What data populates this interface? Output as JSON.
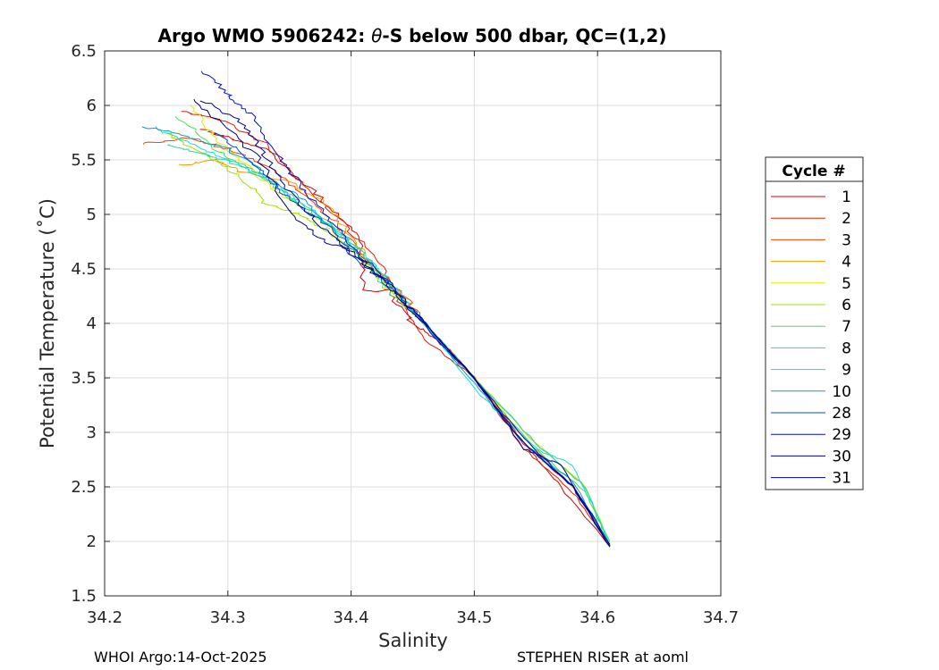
{
  "chart_data": {
    "type": "line",
    "title_parts": [
      "Argo WMO 5906242: ",
      "θ",
      "-S below 500 dbar,  QC=(1,2)"
    ],
    "xlabel": "Salinity",
    "ylabel": "Potential Temperature (˚C)",
    "xlim": [
      34.2,
      34.7
    ],
    "ylim": [
      1.5,
      6.5
    ],
    "xticks": [
      34.2,
      34.3,
      34.4,
      34.5,
      34.6,
      34.7
    ],
    "xtick_labels": [
      "34.2",
      "34.3",
      "34.4",
      "34.5",
      "34.6",
      "34.7"
    ],
    "yticks": [
      1.5,
      2,
      2.5,
      3,
      3.5,
      4,
      4.5,
      5,
      5.5,
      6,
      6.5
    ],
    "ytick_labels": [
      "1.5",
      "2",
      "2.5",
      "3",
      "3.5",
      "4",
      "4.5",
      "5",
      "5.5",
      "6",
      "6.5"
    ],
    "grid": true,
    "legend_title": "Cycle #",
    "legend_position": "outside-right",
    "series": [
      {
        "name": "1",
        "color": "#d40000",
        "points": [
          [
            34.28,
            5.78
          ],
          [
            34.3,
            5.7
          ],
          [
            34.33,
            5.6
          ],
          [
            34.36,
            5.3
          ],
          [
            34.39,
            5.0
          ],
          [
            34.41,
            4.7
          ],
          [
            34.41,
            4.3
          ],
          [
            34.43,
            4.3
          ],
          [
            34.45,
            4.0
          ],
          [
            34.47,
            3.85
          ],
          [
            34.5,
            3.5
          ],
          [
            34.54,
            2.9
          ],
          [
            34.57,
            2.5
          ],
          [
            34.61,
            1.95
          ]
        ]
      },
      {
        "name": "2",
        "color": "#e01e00",
        "points": [
          [
            34.26,
            5.95
          ],
          [
            34.3,
            5.85
          ],
          [
            34.33,
            5.65
          ],
          [
            34.36,
            5.3
          ],
          [
            34.39,
            4.95
          ],
          [
            34.42,
            4.6
          ],
          [
            34.44,
            4.2
          ],
          [
            34.46,
            3.85
          ],
          [
            34.5,
            3.5
          ],
          [
            34.54,
            2.85
          ],
          [
            34.58,
            2.45
          ],
          [
            34.61,
            1.96
          ]
        ]
      },
      {
        "name": "3",
        "color": "#ee4400",
        "points": [
          [
            34.23,
            5.65
          ],
          [
            34.27,
            5.7
          ],
          [
            34.3,
            5.6
          ],
          [
            34.33,
            5.45
          ],
          [
            34.36,
            5.2
          ],
          [
            34.39,
            4.9
          ],
          [
            34.41,
            4.6
          ],
          [
            34.44,
            4.3
          ],
          [
            34.46,
            4.0
          ],
          [
            34.5,
            3.5
          ],
          [
            34.54,
            2.9
          ],
          [
            34.58,
            2.5
          ],
          [
            34.61,
            1.97
          ]
        ]
      },
      {
        "name": "4",
        "color": "#f49a00",
        "points": [
          [
            34.26,
            5.45
          ],
          [
            34.29,
            5.5
          ],
          [
            34.31,
            5.4
          ],
          [
            34.35,
            5.3
          ],
          [
            34.38,
            5.1
          ],
          [
            34.4,
            4.8
          ],
          [
            34.42,
            4.5
          ],
          [
            34.44,
            4.25
          ],
          [
            34.46,
            4.0
          ],
          [
            34.5,
            3.5
          ],
          [
            34.54,
            2.95
          ],
          [
            34.58,
            2.5
          ],
          [
            34.61,
            1.98
          ]
        ]
      },
      {
        "name": "5",
        "color": "#e8e800",
        "points": [
          [
            34.27,
            6.0
          ],
          [
            34.29,
            5.7
          ],
          [
            34.31,
            5.5
          ],
          [
            34.34,
            5.2
          ],
          [
            34.37,
            5.0
          ],
          [
            34.39,
            4.8
          ],
          [
            34.42,
            4.45
          ],
          [
            34.45,
            4.1
          ],
          [
            34.5,
            3.5
          ],
          [
            34.55,
            2.9
          ],
          [
            34.59,
            2.5
          ],
          [
            34.61,
            1.98
          ]
        ]
      },
      {
        "name": "6",
        "color": "#9ee000",
        "points": [
          [
            34.25,
            5.75
          ],
          [
            34.28,
            5.55
          ],
          [
            34.31,
            5.35
          ],
          [
            34.33,
            5.1
          ],
          [
            34.36,
            5.0
          ],
          [
            34.38,
            4.85
          ],
          [
            34.41,
            4.6
          ],
          [
            34.43,
            4.3
          ],
          [
            34.46,
            4.0
          ],
          [
            34.5,
            3.5
          ],
          [
            34.55,
            2.9
          ],
          [
            34.59,
            2.5
          ],
          [
            34.61,
            1.97
          ]
        ]
      },
      {
        "name": "7",
        "color": "#40e050",
        "points": [
          [
            34.26,
            5.9
          ],
          [
            34.29,
            5.6
          ],
          [
            34.32,
            5.4
          ],
          [
            34.35,
            5.15
          ],
          [
            34.38,
            4.95
          ],
          [
            34.41,
            4.6
          ],
          [
            34.43,
            4.3
          ],
          [
            34.46,
            4.0
          ],
          [
            34.5,
            3.5
          ],
          [
            34.55,
            2.85
          ],
          [
            34.59,
            2.45
          ],
          [
            34.61,
            1.96
          ]
        ]
      },
      {
        "name": "8",
        "color": "#2ad6a0",
        "points": [
          [
            34.25,
            5.65
          ],
          [
            34.28,
            5.55
          ],
          [
            34.31,
            5.45
          ],
          [
            34.34,
            5.25
          ],
          [
            34.37,
            5.0
          ],
          [
            34.4,
            4.75
          ],
          [
            34.43,
            4.4
          ],
          [
            34.45,
            4.1
          ],
          [
            34.5,
            3.5
          ],
          [
            34.55,
            2.9
          ],
          [
            34.59,
            2.5
          ],
          [
            34.61,
            1.96
          ]
        ]
      },
      {
        "name": "9",
        "color": "#18dada",
        "points": [
          [
            34.24,
            5.8
          ],
          [
            34.27,
            5.65
          ],
          [
            34.3,
            5.5
          ],
          [
            34.33,
            5.35
          ],
          [
            34.36,
            5.1
          ],
          [
            34.4,
            4.75
          ],
          [
            34.43,
            4.4
          ],
          [
            34.46,
            4.0
          ],
          [
            34.5,
            3.4
          ],
          [
            34.55,
            2.85
          ],
          [
            34.58,
            2.7
          ],
          [
            34.61,
            2.0
          ]
        ]
      },
      {
        "name": "10",
        "color": "#0a9ad0",
        "points": [
          [
            34.23,
            5.8
          ],
          [
            34.26,
            5.75
          ],
          [
            34.3,
            5.6
          ],
          [
            34.34,
            5.3
          ],
          [
            34.37,
            5.05
          ],
          [
            34.4,
            4.7
          ],
          [
            34.43,
            4.35
          ],
          [
            34.46,
            4.0
          ],
          [
            34.5,
            3.45
          ],
          [
            34.54,
            2.9
          ],
          [
            34.58,
            2.55
          ],
          [
            34.61,
            1.96
          ]
        ]
      },
      {
        "name": "28",
        "color": "#0050d0",
        "points": [
          [
            34.29,
            5.75
          ],
          [
            34.31,
            5.55
          ],
          [
            34.33,
            5.35
          ],
          [
            34.35,
            5.15
          ],
          [
            34.38,
            4.9
          ],
          [
            34.4,
            4.65
          ],
          [
            34.43,
            4.35
          ],
          [
            34.46,
            4.0
          ],
          [
            34.5,
            3.5
          ],
          [
            34.54,
            2.9
          ],
          [
            34.58,
            2.5
          ],
          [
            34.61,
            1.96
          ]
        ]
      },
      {
        "name": "29",
        "color": "#0010c8",
        "points": [
          [
            34.28,
            6.32
          ],
          [
            34.3,
            6.1
          ],
          [
            34.32,
            5.9
          ],
          [
            34.34,
            5.55
          ],
          [
            34.36,
            5.25
          ],
          [
            34.38,
            5.0
          ],
          [
            34.4,
            4.7
          ],
          [
            34.43,
            4.4
          ],
          [
            34.45,
            4.1
          ],
          [
            34.5,
            3.5
          ],
          [
            34.54,
            2.95
          ],
          [
            34.58,
            2.5
          ],
          [
            34.61,
            1.95
          ]
        ]
      },
      {
        "name": "30",
        "color": "#00009a",
        "points": [
          [
            34.28,
            6.05
          ],
          [
            34.31,
            5.85
          ],
          [
            34.33,
            5.55
          ],
          [
            34.35,
            5.2
          ],
          [
            34.38,
            4.85
          ],
          [
            34.41,
            4.55
          ],
          [
            34.44,
            4.25
          ],
          [
            34.46,
            4.0
          ],
          [
            34.5,
            3.5
          ],
          [
            34.54,
            2.85
          ],
          [
            34.57,
            2.7
          ],
          [
            34.61,
            1.97
          ]
        ]
      },
      {
        "name": "31",
        "color": "#00007a",
        "points": [
          [
            34.27,
            6.05
          ],
          [
            34.3,
            5.8
          ],
          [
            34.33,
            5.45
          ],
          [
            34.35,
            5.0
          ],
          [
            34.38,
            4.75
          ],
          [
            34.4,
            4.65
          ],
          [
            34.43,
            4.35
          ],
          [
            34.46,
            4.0
          ],
          [
            34.5,
            3.5
          ],
          [
            34.54,
            2.9
          ],
          [
            34.58,
            2.5
          ],
          [
            34.61,
            1.95
          ]
        ]
      }
    ]
  },
  "footer": {
    "left": "WHOI Argo:14-Oct-2025",
    "right": "STEPHEN RISER at aoml"
  }
}
